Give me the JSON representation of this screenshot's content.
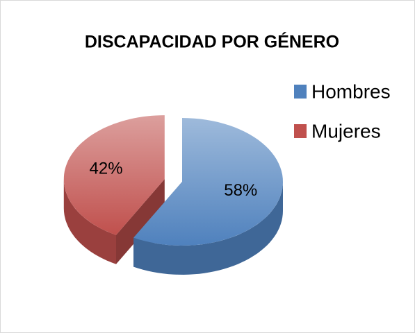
{
  "chart_data": {
    "type": "pie",
    "title": "DISCAPACIDAD POR GÉNERO",
    "categories": [
      "Hombres",
      "Mujeres"
    ],
    "values": [
      58,
      42
    ],
    "value_labels": [
      "58%",
      "42%"
    ],
    "colors": [
      "#4f81bd",
      "#c0504d"
    ],
    "legend": "right",
    "exploded": [
      false,
      true
    ]
  }
}
